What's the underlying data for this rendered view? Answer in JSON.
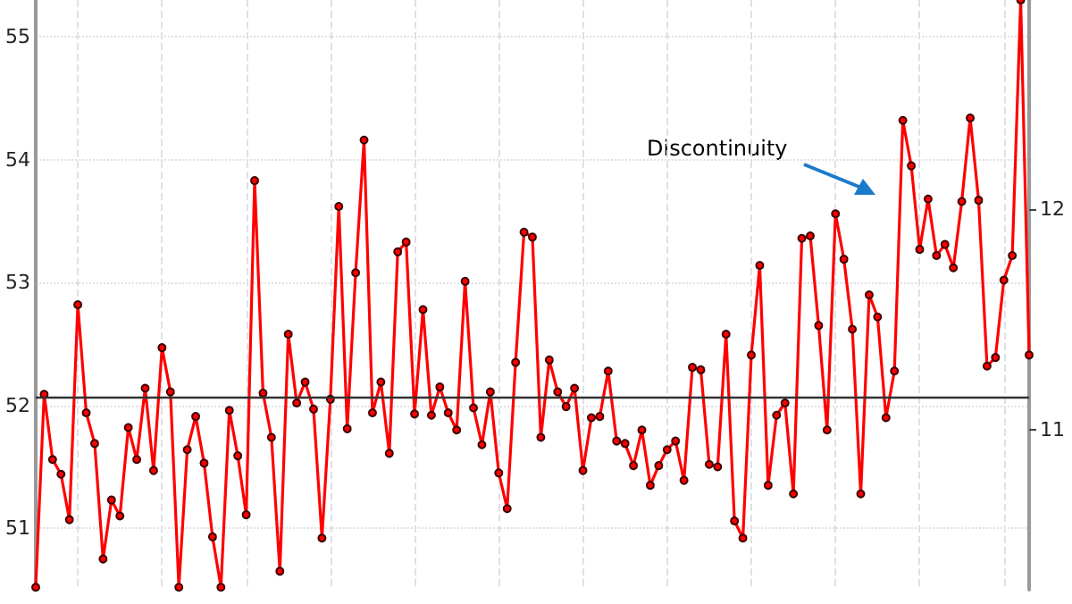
{
  "chart_data": {
    "type": "line",
    "categories": [
      null,
      null,
      null,
      null,
      null,
      null,
      null,
      null,
      null,
      null,
      null,
      null,
      null,
      null,
      null,
      null,
      null,
      null,
      null,
      null,
      null,
      null,
      null,
      null,
      null,
      null,
      null,
      null,
      null,
      null,
      null,
      null,
      null,
      null,
      null,
      null,
      null,
      null,
      null,
      null,
      null,
      null,
      null,
      null,
      null,
      null,
      null,
      null,
      null,
      null,
      null,
      null,
      null,
      null,
      null,
      null,
      null,
      null,
      null,
      null,
      null,
      null,
      null,
      null,
      null,
      null,
      null,
      null,
      null,
      null,
      null,
      null,
      null,
      null,
      null,
      null,
      null,
      null,
      null,
      null,
      null,
      null,
      null,
      null,
      null,
      null,
      null,
      null,
      null,
      null,
      null,
      null,
      null,
      null,
      null,
      null,
      null,
      null,
      null,
      null,
      null,
      null,
      null,
      null,
      null,
      null,
      null,
      null,
      null,
      null,
      null,
      null,
      null,
      null,
      null,
      null,
      null,
      null,
      null
    ],
    "series": [
      {
        "color": "#ff0000",
        "values": [
          50.52,
          52.09,
          51.56,
          51.44,
          51.07,
          52.82,
          51.94,
          51.69,
          50.75,
          51.23,
          51.1,
          51.82,
          51.56,
          52.14,
          51.47,
          52.47,
          52.11,
          50.52,
          51.64,
          51.91,
          51.53,
          50.93,
          50.52,
          51.96,
          51.59,
          51.11,
          53.83,
          52.1,
          51.74,
          50.65,
          52.58,
          52.02,
          52.19,
          51.97,
          50.92,
          52.05,
          53.62,
          51.81,
          53.08,
          54.16,
          51.94,
          52.19,
          51.61,
          53.25,
          53.33,
          51.93,
          52.78,
          51.92,
          52.15,
          51.94,
          51.8,
          53.01,
          51.98,
          51.68,
          52.11,
          51.45,
          51.16,
          52.35,
          53.41,
          53.37,
          51.74,
          52.37,
          52.11,
          51.99,
          52.14,
          51.47,
          51.9,
          51.91,
          52.28,
          51.71,
          51.69,
          51.51,
          51.8,
          51.35,
          51.51,
          51.64,
          51.71,
          51.39,
          52.31,
          52.29,
          51.52,
          51.5,
          52.58,
          51.06,
          50.92,
          52.41,
          53.14,
          51.35,
          51.92,
          52.02,
          51.28,
          53.36,
          53.38,
          52.65,
          51.8,
          53.56,
          53.19,
          52.62,
          51.28,
          52.9,
          52.72,
          51.9,
          52.28,
          54.32,
          53.95,
          53.27,
          53.68,
          53.22,
          53.31,
          53.12,
          53.66,
          54.34,
          53.67,
          52.32,
          52.39,
          53.02,
          53.22,
          55.3,
          52.41
        ]
      }
    ],
    "ylim": [
      50.5,
      55.3
    ],
    "yticks": [
      51,
      52,
      53,
      54,
      55
    ],
    "y2lim": [
      10.278,
      12.944
    ],
    "y2ticks": [
      11,
      12
    ],
    "ref_lines": [
      {
        "axis": "y",
        "value": 52.07,
        "color": "#333333"
      }
    ],
    "annotations": [
      "Discontinuity"
    ],
    "grid": true,
    "marker": "circle",
    "line_style": "solid"
  }
}
